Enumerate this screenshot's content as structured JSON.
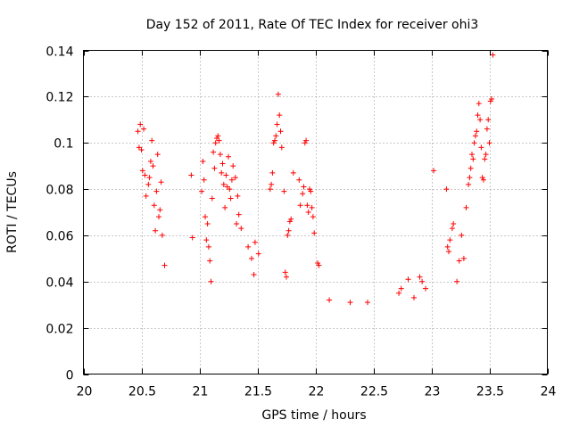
{
  "chart_data": {
    "type": "scatter",
    "title": "Day 152 of 2011, Rate Of TEC Index for receiver ohi3",
    "xlabel": "GPS time / hours",
    "ylabel": "ROTI / TECUs",
    "xlim": [
      20,
      24
    ],
    "ylim": [
      0,
      0.14
    ],
    "x_ticks": [
      20,
      20.5,
      21,
      21.5,
      22,
      22.5,
      23,
      23.5,
      24
    ],
    "x_tick_labels": [
      "20",
      "20.5",
      "21",
      "21.5",
      "22",
      "22.5",
      "23",
      "23.5",
      "24"
    ],
    "y_ticks": [
      0,
      0.02,
      0.04,
      0.06,
      0.08,
      0.1,
      0.12,
      0.14
    ],
    "y_tick_labels": [
      "0",
      "0.02",
      "0.04",
      "0.06",
      "0.08",
      "0.1",
      "0.12",
      "0.14"
    ],
    "grid": true,
    "marker": "+",
    "color": "#ff0000",
    "series": [
      {
        "name": "ROTI",
        "points": [
          [
            20.47,
            0.105
          ],
          [
            20.48,
            0.098
          ],
          [
            20.49,
            0.108
          ],
          [
            20.5,
            0.097
          ],
          [
            20.51,
            0.088
          ],
          [
            20.52,
            0.106
          ],
          [
            20.53,
            0.086
          ],
          [
            20.54,
            0.077
          ],
          [
            20.56,
            0.082
          ],
          [
            20.57,
            0.085
          ],
          [
            20.58,
            0.092
          ],
          [
            20.59,
            0.101
          ],
          [
            20.6,
            0.09
          ],
          [
            20.61,
            0.073
          ],
          [
            20.62,
            0.062
          ],
          [
            20.63,
            0.079
          ],
          [
            20.64,
            0.095
          ],
          [
            20.65,
            0.068
          ],
          [
            20.66,
            0.071
          ],
          [
            20.67,
            0.083
          ],
          [
            20.68,
            0.06
          ],
          [
            20.7,
            0.047
          ],
          [
            20.93,
            0.086
          ],
          [
            20.94,
            0.059
          ],
          [
            21.02,
            0.079
          ],
          [
            21.03,
            0.092
          ],
          [
            21.04,
            0.084
          ],
          [
            21.05,
            0.068
          ],
          [
            21.06,
            0.058
          ],
          [
            21.07,
            0.065
          ],
          [
            21.08,
            0.055
          ],
          [
            21.09,
            0.049
          ],
          [
            21.1,
            0.04
          ],
          [
            21.11,
            0.076
          ],
          [
            21.12,
            0.096
          ],
          [
            21.13,
            0.089
          ],
          [
            21.14,
            0.1
          ],
          [
            21.15,
            0.102
          ],
          [
            21.16,
            0.103
          ],
          [
            21.17,
            0.101
          ],
          [
            21.18,
            0.095
          ],
          [
            21.19,
            0.087
          ],
          [
            21.2,
            0.091
          ],
          [
            21.21,
            0.082
          ],
          [
            21.22,
            0.072
          ],
          [
            21.23,
            0.086
          ],
          [
            21.24,
            0.081
          ],
          [
            21.25,
            0.094
          ],
          [
            21.26,
            0.08
          ],
          [
            21.27,
            0.076
          ],
          [
            21.28,
            0.084
          ],
          [
            21.29,
            0.09
          ],
          [
            21.31,
            0.085
          ],
          [
            21.32,
            0.065
          ],
          [
            21.33,
            0.077
          ],
          [
            21.34,
            0.069
          ],
          [
            21.36,
            0.063
          ],
          [
            21.42,
            0.055
          ],
          [
            21.45,
            0.05
          ],
          [
            21.47,
            0.043
          ],
          [
            21.48,
            0.057
          ],
          [
            21.51,
            0.052
          ],
          [
            21.61,
            0.08
          ],
          [
            21.62,
            0.082
          ],
          [
            21.63,
            0.087
          ],
          [
            21.64,
            0.1
          ],
          [
            21.65,
            0.101
          ],
          [
            21.66,
            0.103
          ],
          [
            21.67,
            0.108
          ],
          [
            21.68,
            0.121
          ],
          [
            21.69,
            0.112
          ],
          [
            21.7,
            0.105
          ],
          [
            21.71,
            0.098
          ],
          [
            21.73,
            0.079
          ],
          [
            21.74,
            0.044
          ],
          [
            21.75,
            0.042
          ],
          [
            21.76,
            0.06
          ],
          [
            21.77,
            0.062
          ],
          [
            21.78,
            0.066
          ],
          [
            21.79,
            0.067
          ],
          [
            21.81,
            0.087
          ],
          [
            21.86,
            0.084
          ],
          [
            21.87,
            0.073
          ],
          [
            21.89,
            0.078
          ],
          [
            21.9,
            0.081
          ],
          [
            21.91,
            0.1
          ],
          [
            21.92,
            0.101
          ],
          [
            21.93,
            0.073
          ],
          [
            21.94,
            0.07
          ],
          [
            21.95,
            0.08
          ],
          [
            21.96,
            0.079
          ],
          [
            21.97,
            0.072
          ],
          [
            21.98,
            0.068
          ],
          [
            21.99,
            0.061
          ],
          [
            22.02,
            0.048
          ],
          [
            22.03,
            0.047
          ],
          [
            23.02,
            0.088
          ],
          [
            23.13,
            0.08
          ],
          [
            23.14,
            0.055
          ],
          [
            23.15,
            0.053
          ],
          [
            23.16,
            0.058
          ],
          [
            23.18,
            0.063
          ],
          [
            23.19,
            0.065
          ],
          [
            23.22,
            0.04
          ],
          [
            23.24,
            0.049
          ],
          [
            23.26,
            0.06
          ],
          [
            23.28,
            0.05
          ],
          [
            23.3,
            0.072
          ],
          [
            23.32,
            0.082
          ],
          [
            23.33,
            0.085
          ],
          [
            23.34,
            0.089
          ],
          [
            23.35,
            0.095
          ],
          [
            23.36,
            0.093
          ],
          [
            23.37,
            0.1
          ],
          [
            23.38,
            0.103
          ],
          [
            23.39,
            0.105
          ],
          [
            23.4,
            0.112
          ],
          [
            23.41,
            0.117
          ],
          [
            23.42,
            0.11
          ],
          [
            23.43,
            0.098
          ],
          [
            23.44,
            0.085
          ],
          [
            23.45,
            0.084
          ],
          [
            23.46,
            0.093
          ],
          [
            23.47,
            0.095
          ],
          [
            23.48,
            0.106
          ],
          [
            23.49,
            0.11
          ],
          [
            23.5,
            0.1
          ],
          [
            23.51,
            0.118
          ],
          [
            23.52,
            0.119
          ],
          [
            23.53,
            0.138
          ],
          [
            22.72,
            0.035
          ],
          [
            22.74,
            0.037
          ],
          [
            22.8,
            0.041
          ],
          [
            22.85,
            0.033
          ],
          [
            22.9,
            0.042
          ],
          [
            22.92,
            0.04
          ],
          [
            22.95,
            0.037
          ],
          [
            22.3,
            0.031
          ],
          [
            22.45,
            0.031
          ],
          [
            22.12,
            0.032
          ]
        ]
      }
    ]
  }
}
